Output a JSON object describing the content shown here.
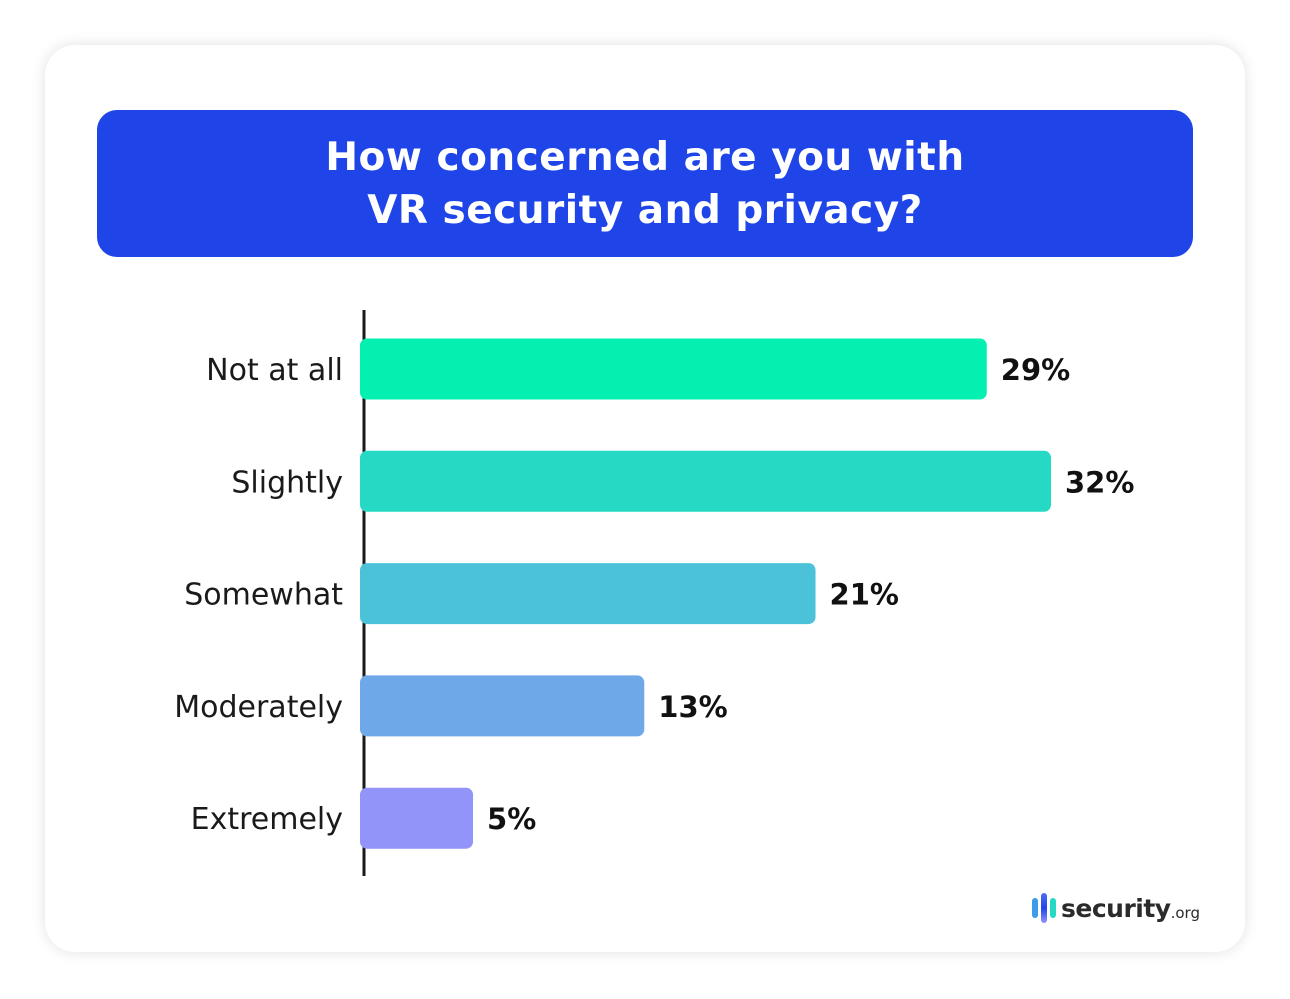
{
  "chart_data": {
    "type": "bar",
    "orientation": "horizontal",
    "title": "How concerned are you with VR security and privacy?",
    "categories": [
      "Not at all",
      "Slightly",
      "Somewhat",
      "Moderately",
      "Extremely"
    ],
    "values": [
      29,
      32,
      21,
      13,
      5
    ],
    "value_labels": [
      "29%",
      "32%",
      "21%",
      "13%",
      "5%"
    ],
    "unit": "%",
    "colors": [
      "#03f0b0",
      "#25d9c4",
      "#4bc2d8",
      "#6ea8e8",
      "#9294fa"
    ],
    "grid": false,
    "xlim": [
      0,
      32
    ]
  },
  "header_color": "#1f45e8",
  "logo": {
    "name": "security",
    "suffix": ".org"
  }
}
